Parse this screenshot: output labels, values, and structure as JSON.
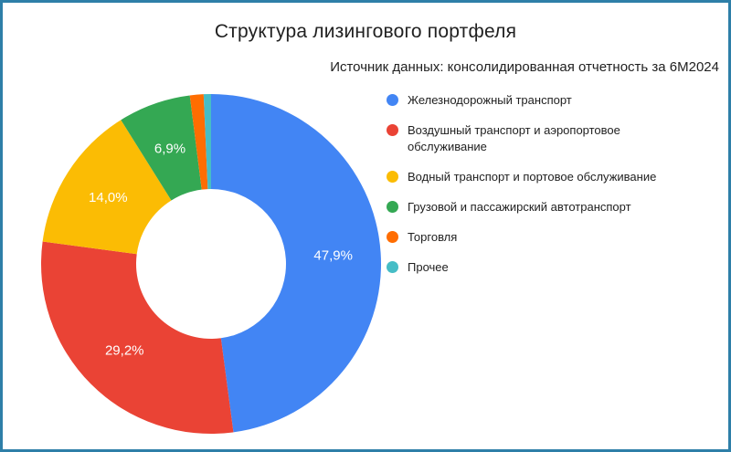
{
  "border_color": "#2e7fa8",
  "chart_data": {
    "type": "pie",
    "donut": true,
    "title": "Структура лизингового портфеля",
    "subtitle": "Источник данных: консолидированная отчетность за 6М2024",
    "categories": [
      "Железнодорожный транспорт",
      "Воздушный транспорт и аэропортовое обслуживание",
      "Водный транспорт и портовое обслуживание",
      "Грузовой и пассажирский автотранспорт",
      "Торговля",
      "Прочее"
    ],
    "values": [
      47.9,
      29.2,
      14.0,
      6.9,
      1.3,
      0.7
    ],
    "slice_labels": [
      "47,9%",
      "29,2%",
      "14,0%",
      "6,9%",
      "",
      ""
    ],
    "colors": [
      "#4285F4",
      "#EA4335",
      "#FBBC04",
      "#34A853",
      "#FF6D01",
      "#46BDC6"
    ],
    "legend_position": "right",
    "start_angle_deg": 0,
    "direction": "clockwise"
  }
}
